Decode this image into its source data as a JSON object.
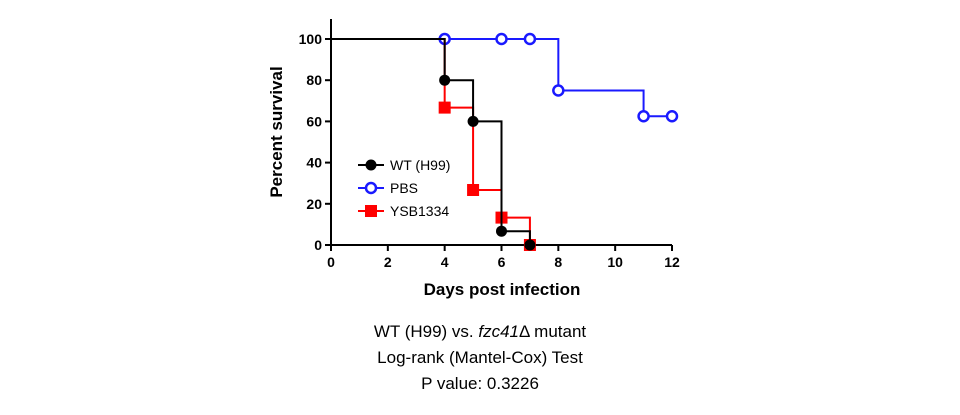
{
  "chart_data": {
    "type": "line",
    "subtype": "survival-step",
    "xlabel": "Days post infection",
    "ylabel": "Percent survival",
    "xlim": [
      0,
      12
    ],
    "ylim": [
      0,
      100
    ],
    "x_ticks": [
      "0",
      "2",
      "4",
      "6",
      "8",
      "10",
      "12"
    ],
    "y_ticks": [
      "0",
      "20",
      "40",
      "60",
      "80",
      "100"
    ],
    "grid": false,
    "legend_position": "center-left",
    "series": [
      {
        "name": "WT (H99)",
        "color": "#000000",
        "marker": "filled-circle",
        "x": [
          0,
          4,
          5,
          6,
          7
        ],
        "y": [
          100,
          80,
          60,
          6.7,
          0
        ]
      },
      {
        "name": "PBS",
        "color": "#1a1aff",
        "marker": "open-circle",
        "x": [
          0,
          4,
          6,
          7,
          8,
          11,
          12
        ],
        "y": [
          100,
          100,
          100,
          100,
          75,
          62.5,
          62.5
        ]
      },
      {
        "name": "YSB1334",
        "color": "#ff0000",
        "marker": "filled-square",
        "x": [
          0,
          4,
          5,
          6,
          7
        ],
        "y": [
          100,
          66.7,
          26.7,
          13.3,
          0
        ]
      }
    ]
  },
  "caption": {
    "line1_prefix": "WT (H99) vs. ",
    "line1_italic": "fzc41",
    "line1_suffix": "Δ mutant",
    "line2": "Log-rank (Mantel-Cox) Test",
    "line3": "P value: 0.3226"
  }
}
